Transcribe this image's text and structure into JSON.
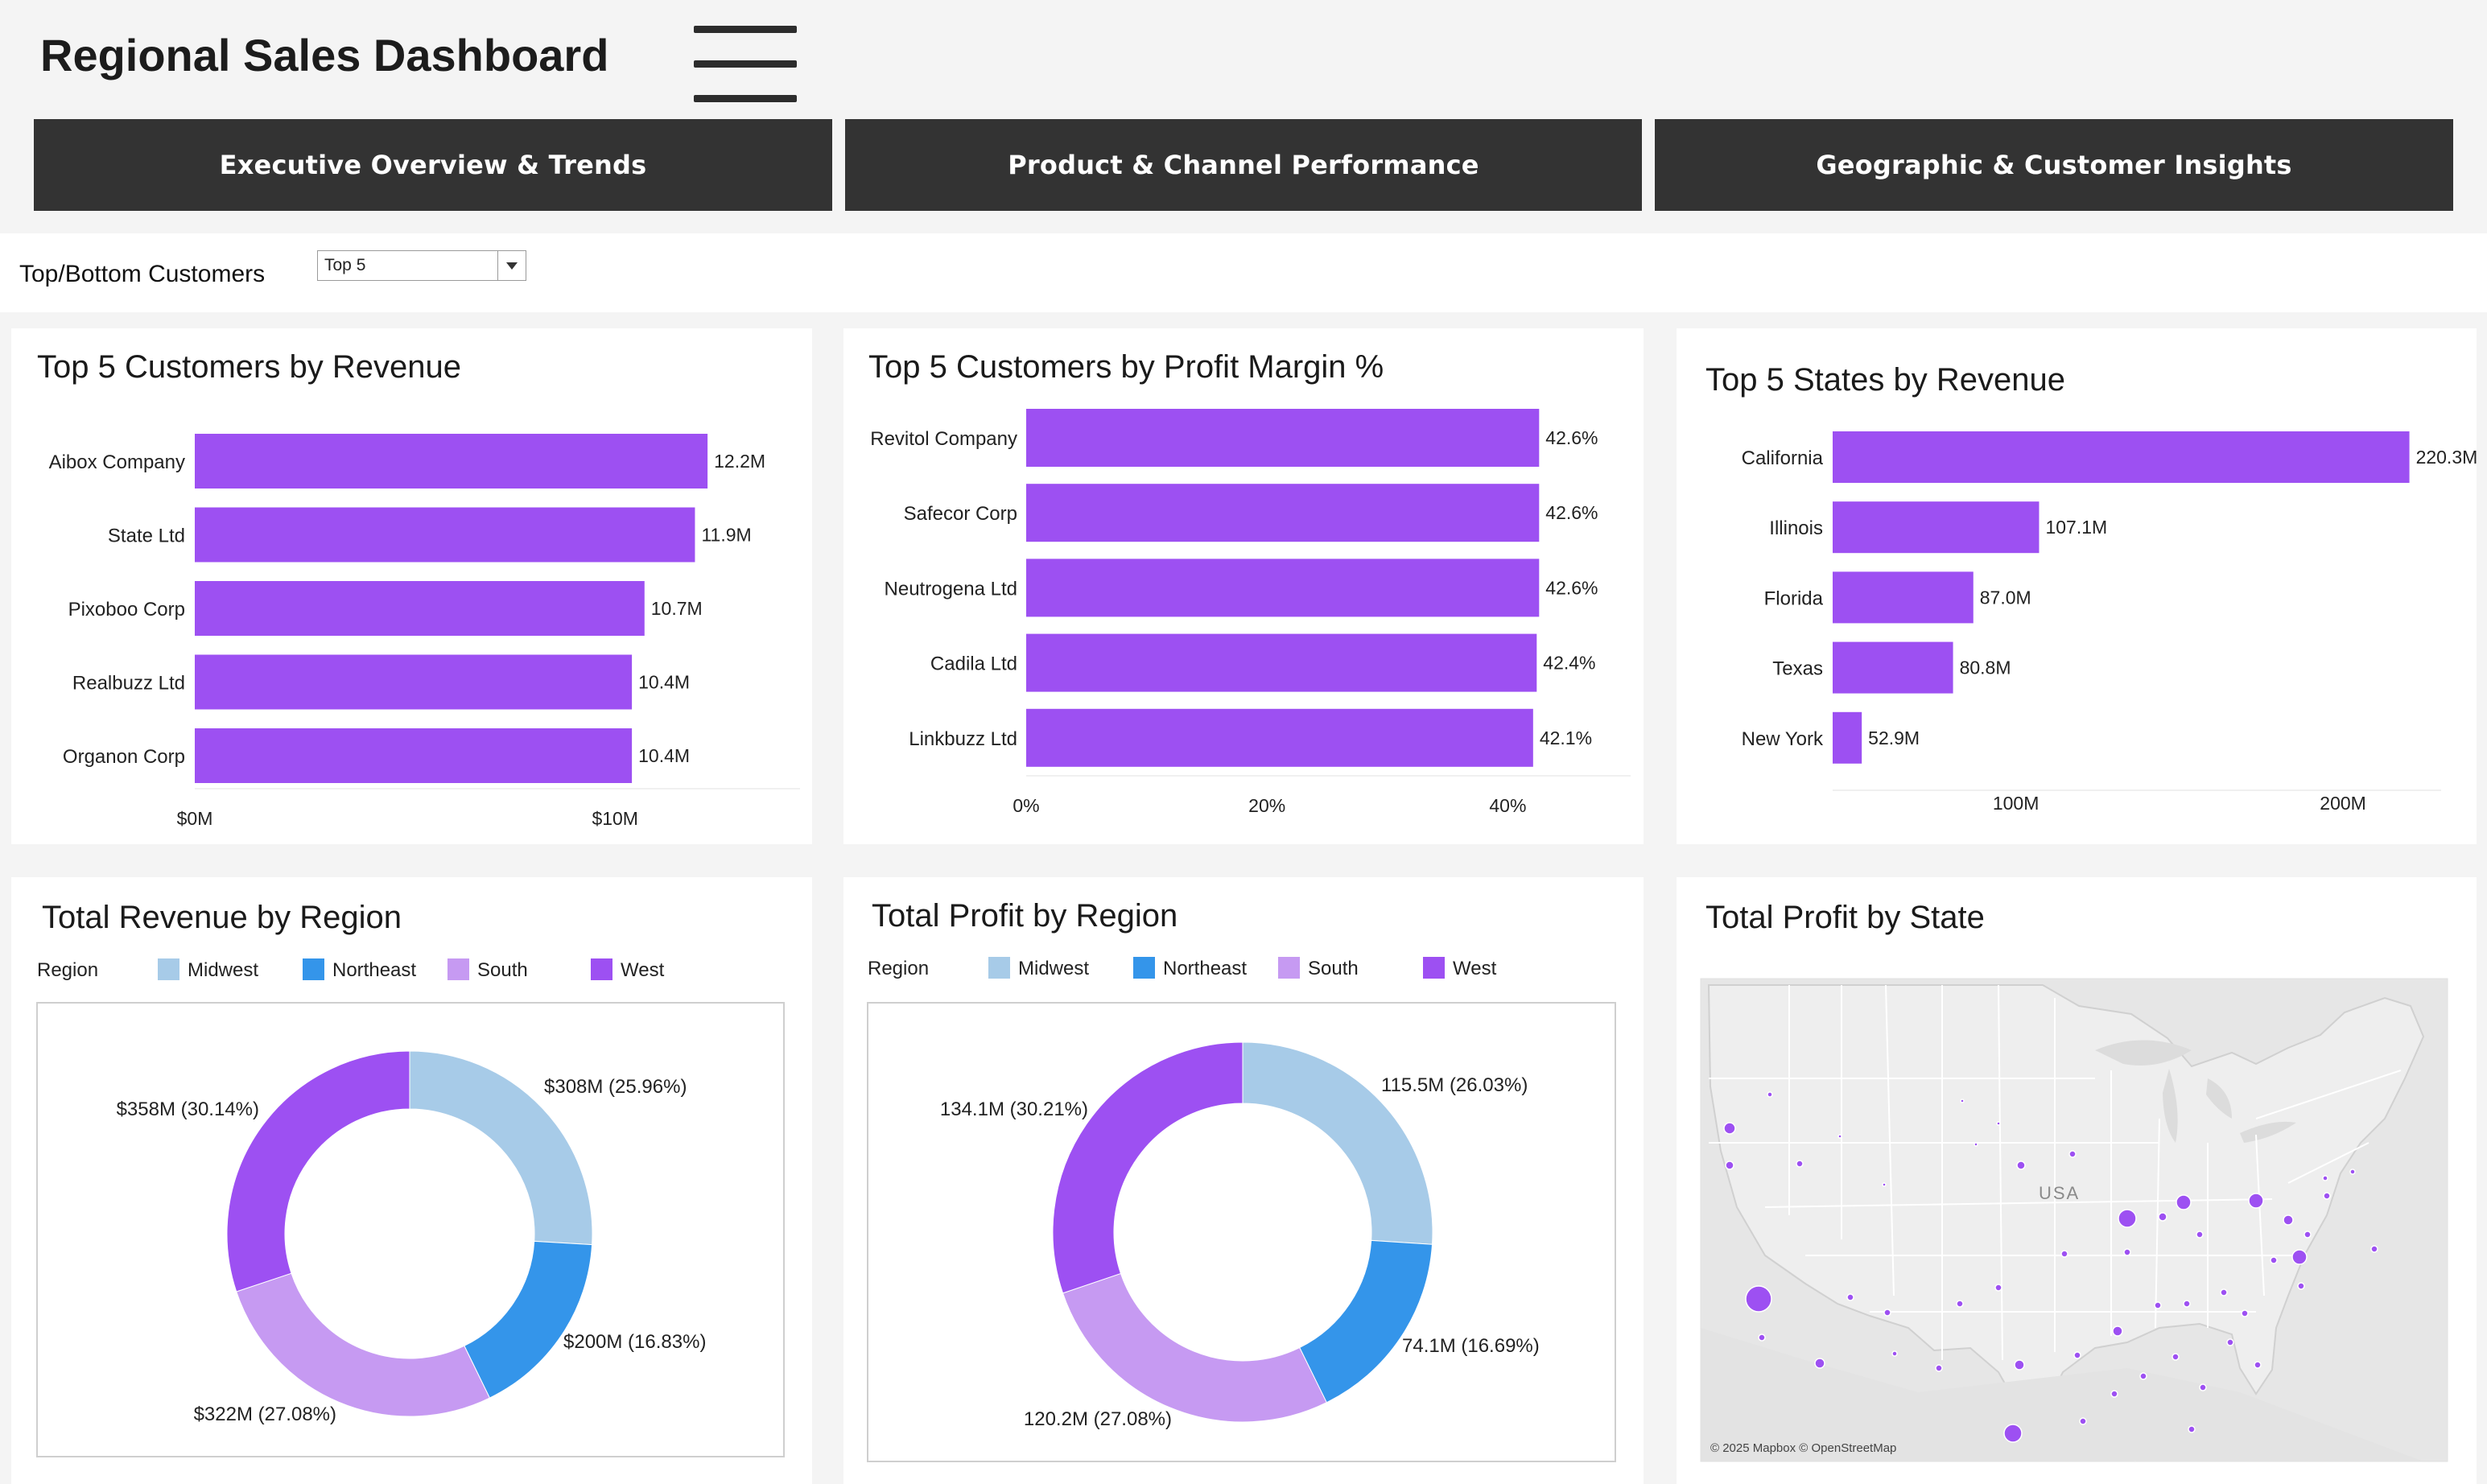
{
  "header": {
    "title": "Regional Sales Dashboard"
  },
  "nav": {
    "tabs": [
      {
        "label": "Executive Overview & Trends"
      },
      {
        "label": "Product & Channel Performance"
      },
      {
        "label": "Geographic & Customer Insights"
      }
    ]
  },
  "filter": {
    "label": "Top/Bottom Customers",
    "selected": "Top 5"
  },
  "colors": {
    "bar": "#9d50f2",
    "Midwest": "#a7cbe8",
    "Northeast": "#3495ea",
    "South": "#c69af2",
    "West": "#9d50f2",
    "map_bg": "#e6e6e6",
    "map_line": "#ffffff"
  },
  "legend": {
    "title": "Region",
    "items": [
      "Midwest",
      "Northeast",
      "South",
      "West"
    ]
  },
  "map": {
    "title": "Total Profit by State",
    "country_label": "USA",
    "attribution": "© 2025 Mapbox © OpenStreetMap"
  },
  "chart_data": [
    {
      "id": "customers-revenue",
      "type": "bar",
      "orientation": "horizontal",
      "title": "Top 5 Customers by Revenue",
      "categories": [
        "Aibox Company",
        "State Ltd",
        "Pixoboo Corp",
        "Realbuzz Ltd",
        "Organon Corp"
      ],
      "values": [
        12.2,
        11.9,
        10.7,
        10.4,
        10.4
      ],
      "value_labels": [
        "12.2M",
        "11.9M",
        "10.7M",
        "10.4M",
        "10.4M"
      ],
      "unit": "M",
      "xlim": [
        0,
        14.4
      ],
      "ticks": [
        0,
        10
      ],
      "tick_labels": [
        "$0M",
        "$10M"
      ]
    },
    {
      "id": "customers-margin",
      "type": "bar",
      "orientation": "horizontal",
      "title": "Top 5 Customers by Profit Margin %",
      "categories": [
        "Revitol Company",
        "Safecor Corp",
        "Neutrogena Ltd",
        "Cadila Ltd",
        "Linkbuzz Ltd"
      ],
      "values": [
        42.6,
        42.6,
        42.6,
        42.4,
        42.1
      ],
      "value_labels": [
        "42.6%",
        "42.6%",
        "42.6%",
        "42.4%",
        "42.1%"
      ],
      "unit": "%",
      "xlim": [
        0,
        50.2
      ],
      "ticks": [
        0,
        20,
        40
      ],
      "tick_labels": [
        "0%",
        "20%",
        "40%"
      ]
    },
    {
      "id": "states-revenue",
      "type": "bar",
      "orientation": "horizontal",
      "title": "Top 5 States by Revenue",
      "categories": [
        "California",
        "Illinois",
        "Florida",
        "Texas",
        "New York"
      ],
      "values": [
        220.3,
        107.1,
        87.0,
        80.8,
        52.9
      ],
      "value_labels": [
        "220.3M",
        "107.1M",
        "87.0M",
        "80.8M",
        "52.9M"
      ],
      "unit": "M",
      "xlim": [
        44,
        230
      ],
      "ticks": [
        100,
        200
      ],
      "tick_labels": [
        "100M",
        "200M"
      ]
    },
    {
      "id": "revenue-region",
      "type": "pie",
      "variant": "donut",
      "title": "Total Revenue by Region",
      "categories": [
        "Midwest",
        "Northeast",
        "South",
        "West"
      ],
      "values": [
        25.96,
        16.83,
        27.08,
        30.14
      ],
      "value_labels": [
        "$308M (25.96%)",
        "$200M (16.83%)",
        "$322M (27.08%)",
        "$358M (30.14%)"
      ],
      "legend": "top"
    },
    {
      "id": "profit-region",
      "type": "pie",
      "variant": "donut",
      "title": "Total Profit by Region",
      "categories": [
        "Midwest",
        "Northeast",
        "South",
        "West"
      ],
      "values": [
        26.03,
        16.69,
        27.08,
        30.21
      ],
      "value_labels": [
        "115.5M (26.03%)",
        "74.1M (16.69%)",
        "120.2M (27.08%)",
        "134.1M (30.21%)"
      ],
      "legend": "top"
    }
  ]
}
